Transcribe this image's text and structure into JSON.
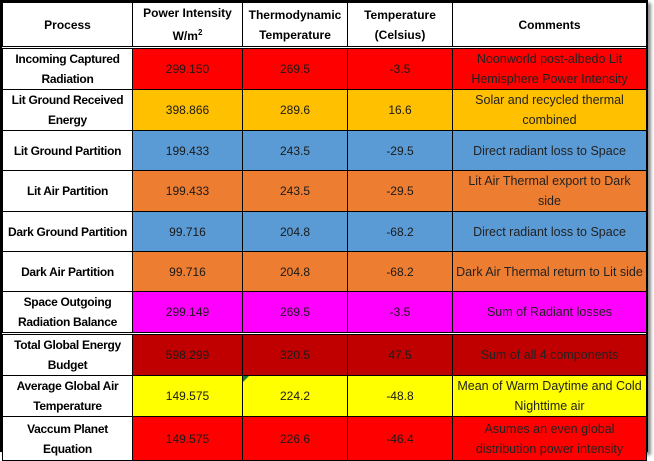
{
  "table": {
    "headers": {
      "process": "Process",
      "power_line1": "Power Intensity",
      "power_line2": "W/m",
      "power_sup": "2",
      "thermo": "Thermodynamic Temperature",
      "celsius": "Temperature (Celsius)",
      "comments": "Comments"
    },
    "rows": [
      {
        "process": "Incoming Captured Radiation",
        "power": "299.150",
        "thermo": "269.5",
        "celsius": "-3.5",
        "comment": "Noonworld post-albedo Lit Hemisphere Power Intensity",
        "color": "#ff0000"
      },
      {
        "process": "Lit Ground Received Energy",
        "power": "398.866",
        "thermo": "289.6",
        "celsius": "16.6",
        "comment": "Solar and recycled thermal combined",
        "color": "#ffc000"
      },
      {
        "process": "Lit Ground Partition",
        "power": "199.433",
        "thermo": "243.5",
        "celsius": "-29.5",
        "comment": "Direct radiant loss to Space",
        "color": "#5b9bd5"
      },
      {
        "process": "Lit Air Partition",
        "power": "199.433",
        "thermo": "243.5",
        "celsius": "-29.5",
        "comment": "Lit Air Thermal export to Dark side",
        "color": "#ed7d31"
      },
      {
        "process": "Dark Ground Partition",
        "power": "99.716",
        "thermo": "204.8",
        "celsius": "-68.2",
        "comment": "Direct radiant loss to Space",
        "color": "#5b9bd5"
      },
      {
        "process": "Dark Air Partition",
        "power": "99.716",
        "thermo": "204.8",
        "celsius": "-68.2",
        "comment": "Dark Air Thermal return  to Lit side",
        "color": "#ed7d31"
      },
      {
        "process": "Space Outgoing Radiation Balance",
        "power": "299.149",
        "thermo": "269.5",
        "celsius": "-3.5",
        "comment": "Sum of Radiant losses",
        "color": "#ff00ff"
      },
      {
        "process": "Total Global Energy Budget",
        "power": "598.299",
        "thermo": "320.5",
        "celsius": "47.5",
        "comment": "Sum of all 4 components",
        "color": "#c00000"
      },
      {
        "process": "Average Global Air Temperature",
        "power": "149.575",
        "thermo": "224.2",
        "celsius": "-48.8",
        "comment": "Mean of Warm Daytime and Cold Nighttime air",
        "color": "#ffff00"
      },
      {
        "process": "Vaccum Planet Equation",
        "power": "149.575",
        "thermo": "226.6",
        "celsius": "-46.4",
        "comment": "Asumes an even global distribution power intensity",
        "color": "#ff0000"
      }
    ]
  }
}
